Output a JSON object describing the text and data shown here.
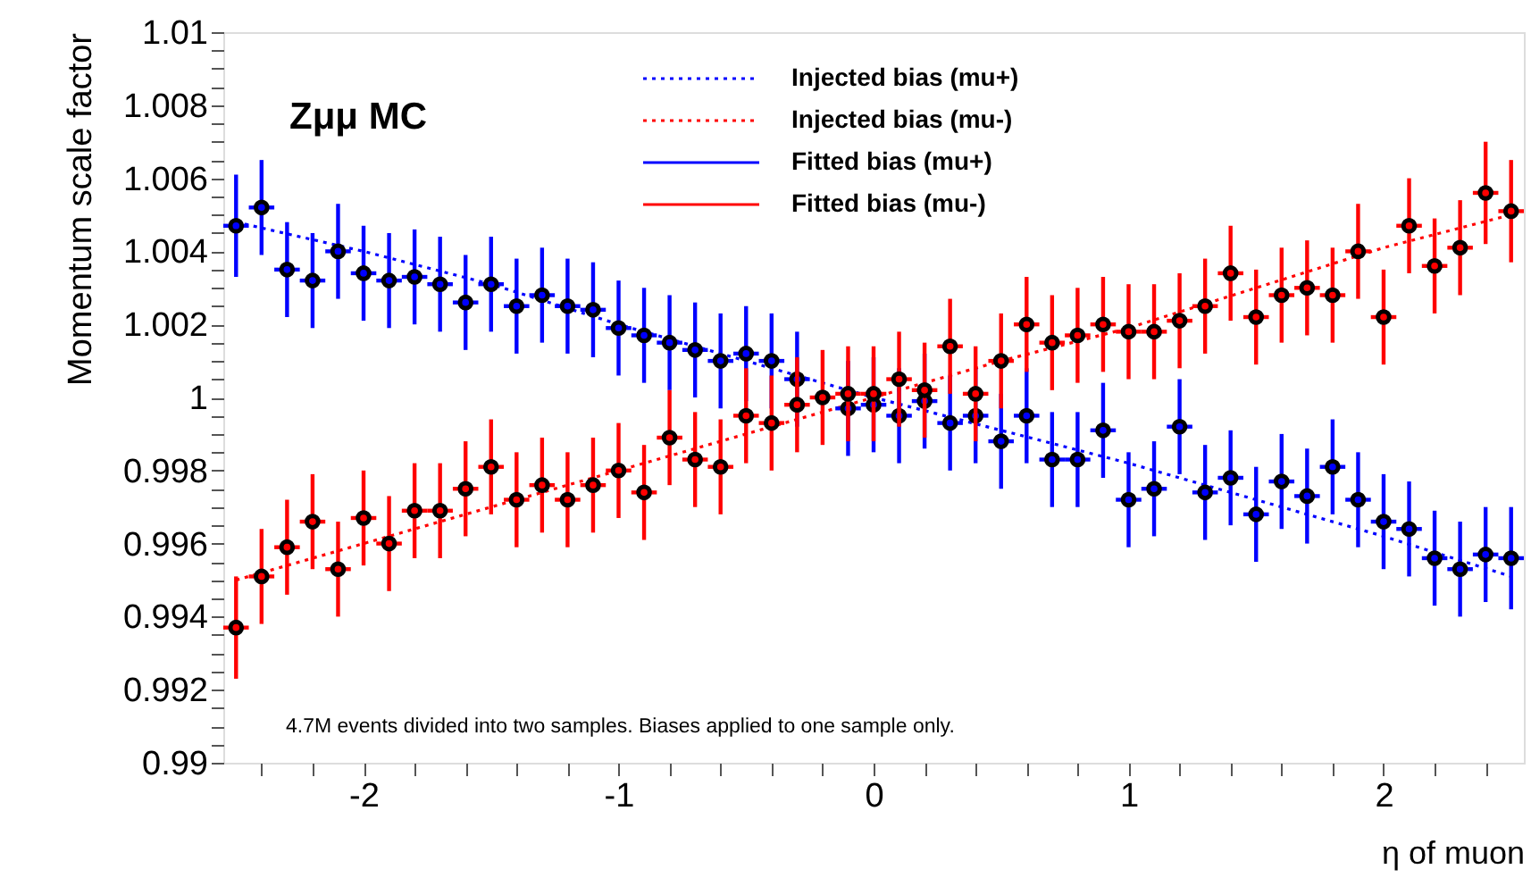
{
  "chart_data": {
    "type": "scatter",
    "xlabel": "η of muon",
    "ylabel": "Momentum scale factor",
    "annotations": [
      "Zμμ MC",
      "4.7M events divided into two samples. Biases applied to one sample only."
    ],
    "x": [
      -2.5,
      -2.4,
      -2.3,
      -2.2,
      -2.1,
      -2.0,
      -1.9,
      -1.8,
      -1.7,
      -1.6,
      -1.5,
      -1.4,
      -1.3,
      -1.2,
      -1.1,
      -1.0,
      -0.9,
      -0.8,
      -0.7,
      -0.6,
      -0.5,
      -0.4,
      -0.3,
      -0.2,
      -0.1,
      0,
      0.1,
      0.2,
      0.3,
      0.4,
      0.5,
      0.6,
      0.7,
      0.8,
      0.9,
      1.0,
      1.1,
      1.2,
      1.3,
      1.4,
      1.5,
      1.6,
      1.7,
      1.8,
      1.9,
      2.0,
      2.1,
      2.2,
      2.3,
      2.4,
      2.5
    ],
    "xlim": [
      -2.55,
      2.55
    ],
    "xticks": [
      {
        "value": -2.4,
        "label": null
      },
      {
        "value": -2.2,
        "label": null
      },
      -2,
      {
        "value": -1.8,
        "label": null
      },
      {
        "value": -1.6,
        "label": null
      },
      {
        "value": -1.4,
        "label": null
      },
      {
        "value": -1.2,
        "label": null
      },
      -1,
      {
        "value": -0.8,
        "label": null
      },
      {
        "value": -0.6,
        "label": null
      },
      {
        "value": -0.4,
        "label": null
      },
      {
        "value": -0.2,
        "label": null
      },
      0,
      {
        "value": 0.2,
        "label": null
      },
      {
        "value": 0.4,
        "label": null
      },
      {
        "value": 0.6,
        "label": null
      },
      {
        "value": 0.8,
        "label": null
      },
      1,
      {
        "value": 1.2,
        "label": null
      },
      {
        "value": 1.4,
        "label": null
      },
      {
        "value": 1.6,
        "label": null
      },
      {
        "value": 1.8,
        "label": null
      },
      2,
      {
        "value": 2.2,
        "label": null
      },
      {
        "value": 2.4,
        "label": null
      }
    ],
    "ylim": [
      0.99,
      1.01
    ],
    "yticks": [
      0.99,
      {
        "value": 0.9905,
        "label": null
      },
      {
        "value": 0.991,
        "label": null
      },
      {
        "value": 0.9915,
        "label": null
      },
      0.992,
      {
        "value": 0.9925,
        "label": null
      },
      {
        "value": 0.993,
        "label": null
      },
      {
        "value": 0.9935,
        "label": null
      },
      0.994,
      {
        "value": 0.9945,
        "label": null
      },
      {
        "value": 0.995,
        "label": null
      },
      {
        "value": 0.9955,
        "label": null
      },
      0.996,
      {
        "value": 0.9965,
        "label": null
      },
      {
        "value": 0.997,
        "label": null
      },
      {
        "value": 0.9975,
        "label": null
      },
      0.998,
      {
        "value": 0.9985,
        "label": null
      },
      {
        "value": 0.999,
        "label": null
      },
      {
        "value": 0.9995,
        "label": null
      },
      1,
      {
        "value": 1.0005,
        "label": null
      },
      {
        "value": 1.001,
        "label": null
      },
      {
        "value": 1.0015,
        "label": null
      },
      1.002,
      {
        "value": 1.0025,
        "label": null
      },
      {
        "value": 1.003,
        "label": null
      },
      {
        "value": 1.0035,
        "label": null
      },
      1.004,
      {
        "value": 1.0045,
        "label": null
      },
      {
        "value": 1.005,
        "label": null
      },
      {
        "value": 1.0055,
        "label": null
      },
      1.006,
      {
        "value": 1.0065,
        "label": null
      },
      {
        "value": 1.007,
        "label": null
      },
      {
        "value": 1.0075,
        "label": null
      },
      1.008,
      {
        "value": 1.0085,
        "label": null
      },
      {
        "value": 1.009,
        "label": null
      },
      {
        "value": 1.0095,
        "label": null
      },
      1.01
    ],
    "grid": false,
    "legend": "top",
    "series": [
      {
        "name": "Injected bias (mu+)",
        "type": "line",
        "line_style": "dotted",
        "marker": "none",
        "color": "#0000ff",
        "x": [
          -2.5,
          -2.0,
          -1.5,
          -1.0,
          -0.5,
          0,
          0.5,
          1.0,
          1.5,
          2.0,
          2.5
        ],
        "values": [
          1.0048,
          1.004,
          1.0031,
          1.002,
          1.001,
          1.0,
          0.9991,
          0.9982,
          0.9972,
          0.9962,
          0.9951
        ]
      },
      {
        "name": "Injected bias (mu-)",
        "type": "line",
        "line_style": "dotted",
        "marker": "none",
        "color": "#ff0000",
        "x": [
          -2.5,
          -2.0,
          -1.5,
          -1.0,
          -0.5,
          0,
          0.5,
          1.0,
          1.5,
          2.0,
          2.5
        ],
        "values": [
          0.995,
          0.996,
          0.997,
          0.998,
          0.999,
          1.0,
          1.001,
          1.0019,
          1.003,
          1.0041,
          1.005
        ]
      },
      {
        "name": "Fitted bias (mu+)",
        "line_style": "solid",
        "marker": "circle",
        "color": "#0000ff",
        "values": [
          1.0047,
          1.0052,
          1.0035,
          1.0032,
          1.004,
          1.0034,
          1.0032,
          1.0033,
          1.0031,
          1.0026,
          1.0031,
          1.0025,
          1.0028,
          1.0025,
          1.0024,
          1.0019,
          1.0017,
          1.0015,
          1.0013,
          1.001,
          1.0012,
          1.001,
          1.0005,
          null,
          0.9997,
          0.9998,
          0.9995,
          0.9999,
          0.9993,
          0.9995,
          0.9988,
          0.9995,
          0.9983,
          0.9983,
          0.9991,
          0.9972,
          0.9975,
          0.9992,
          0.9974,
          0.9978,
          0.9968,
          0.9977,
          0.9973,
          0.9981,
          0.9972,
          0.9966,
          0.9964,
          0.9956,
          0.9953,
          0.9957,
          0.9956
        ],
        "errors": [
          0.0014,
          0.0013,
          0.0013,
          0.0013,
          0.0013,
          0.0013,
          0.0013,
          0.0013,
          0.0013,
          0.0013,
          0.0013,
          0.0013,
          0.0013,
          0.0013,
          0.0013,
          0.0013,
          0.0013,
          0.0013,
          0.0013,
          0.0013,
          0.0013,
          0.0013,
          0.0013,
          null,
          0.0013,
          0.0013,
          0.0013,
          0.0013,
          0.0013,
          0.0013,
          0.0013,
          0.0013,
          0.0013,
          0.0013,
          0.0013,
          0.0013,
          0.0013,
          0.0013,
          0.0013,
          0.0013,
          0.0013,
          0.0013,
          0.0013,
          0.0013,
          0.0013,
          0.0013,
          0.0013,
          0.0013,
          0.0013,
          0.0013,
          0.0014
        ],
        "xerrors": [
          0.05,
          0.05,
          0.05,
          0.05,
          0.05,
          0.05,
          0.05,
          0.05,
          0.05,
          0.05,
          0.05,
          0.05,
          0.05,
          0.05,
          0.05,
          0.05,
          0.05,
          0.05,
          0.05,
          0.05,
          0.05,
          0.05,
          0.05,
          null,
          0.05,
          0.05,
          0.05,
          0.05,
          0.05,
          0.05,
          0.05,
          0.05,
          0.05,
          0.05,
          0.05,
          0.05,
          0.05,
          0.05,
          0.05,
          0.05,
          0.05,
          0.05,
          0.05,
          0.05,
          0.05,
          0.05,
          0.05,
          0.05,
          0.05,
          0.05,
          0.05
        ]
      },
      {
        "name": "Fitted bias (mu-)",
        "line_style": "solid",
        "marker": "circle",
        "color": "#ff0000",
        "values": [
          0.9937,
          0.9951,
          0.9959,
          0.9966,
          0.9953,
          0.9967,
          0.996,
          0.9969,
          0.9969,
          0.9975,
          0.9981,
          0.9972,
          0.9976,
          0.9972,
          0.9976,
          0.998,
          0.9974,
          0.9989,
          0.9983,
          0.9981,
          0.9995,
          0.9993,
          0.9998,
          1.0,
          1.0001,
          1.0001,
          1.0005,
          1.0002,
          1.0014,
          1.0001,
          1.001,
          1.002,
          1.0015,
          1.0017,
          1.002,
          1.0018,
          1.0018,
          1.0021,
          1.0025,
          1.0034,
          1.0022,
          1.0028,
          1.003,
          1.0028,
          1.004,
          1.0022,
          1.0047,
          1.0036,
          1.0041,
          1.0056,
          1.0051
        ],
        "errors": [
          0.0014,
          0.0013,
          0.0013,
          0.0013,
          0.0013,
          0.0013,
          0.0013,
          0.0013,
          0.0013,
          0.0013,
          0.0013,
          0.0013,
          0.0013,
          0.0013,
          0.0013,
          0.0013,
          0.0013,
          0.0013,
          0.0013,
          0.0013,
          0.0013,
          0.0013,
          0.0013,
          0.0013,
          0.0013,
          0.0013,
          0.0013,
          0.0013,
          0.0013,
          0.0013,
          0.0013,
          0.0013,
          0.0013,
          0.0013,
          0.0013,
          0.0013,
          0.0013,
          0.0013,
          0.0013,
          0.0013,
          0.0013,
          0.0013,
          0.0013,
          0.0013,
          0.0013,
          0.0013,
          0.0013,
          0.0013,
          0.0013,
          0.0014,
          0.0014
        ],
        "xerrors": [
          0.05,
          0.05,
          0.05,
          0.05,
          0.05,
          0.05,
          0.05,
          0.05,
          0.05,
          0.05,
          0.05,
          0.05,
          0.05,
          0.05,
          0.05,
          0.05,
          0.05,
          0.05,
          0.05,
          0.05,
          0.05,
          0.05,
          0.05,
          0.05,
          0.05,
          0.05,
          0.05,
          0.05,
          0.05,
          0.05,
          0.05,
          0.05,
          0.05,
          0.05,
          0.05,
          0.05,
          0.05,
          0.05,
          0.05,
          0.05,
          0.05,
          0.05,
          0.05,
          0.05,
          0.05,
          0.05,
          0.05,
          0.05,
          0.05,
          0.05,
          0.05
        ]
      }
    ]
  }
}
